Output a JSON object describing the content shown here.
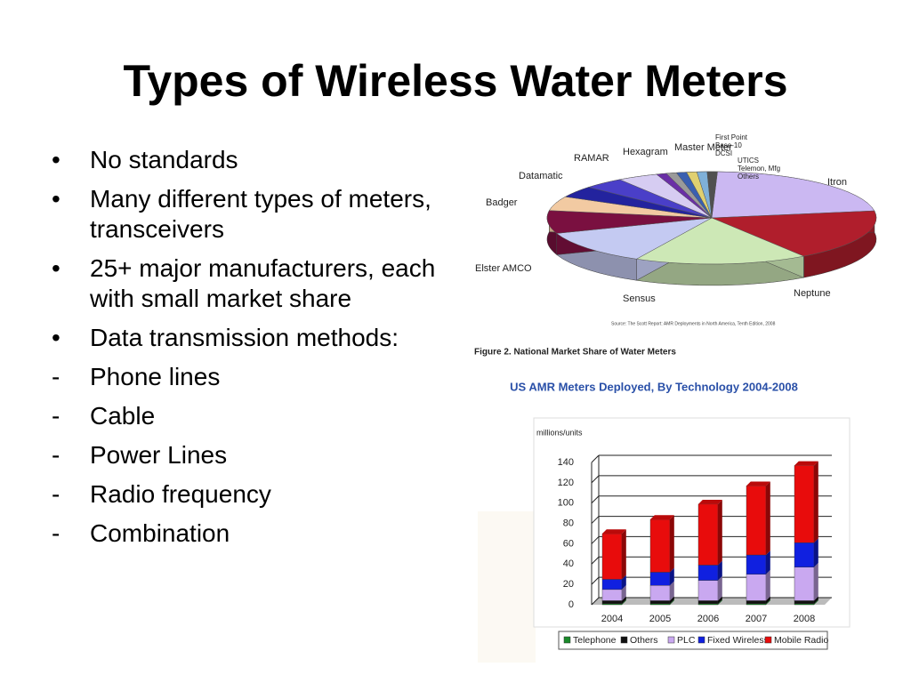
{
  "title": "Types of Wireless Water Meters",
  "bullets": [
    {
      "marker": "•",
      "text": "No standards"
    },
    {
      "marker": "•",
      "text": "Many different types of meters, transceivers"
    },
    {
      "marker": "•",
      "text": "25+ major manufacturers, each with small market share"
    },
    {
      "marker": "•",
      "text": "Data transmission methods:"
    },
    {
      "marker": "-",
      "text": "Phone lines"
    },
    {
      "marker": "-",
      "text": "Cable"
    },
    {
      "marker": "-",
      "text": "Power Lines"
    },
    {
      "marker": "-",
      "text": "Radio frequency"
    },
    {
      "marker": "-",
      "text": "Combination"
    }
  ],
  "chart_data": [
    {
      "type": "pie",
      "caption": "Figure 2.  National Market Share of Water Meters",
      "source": "Source: The Scott Report: AMR Deployments in North America, Tenth Edition, 2008",
      "categories": [
        "Itron",
        "Neptune",
        "Sensus",
        "Elster AMCO",
        "Badger",
        "Datamatic",
        "RAMAR",
        "Hexagram",
        "Master Meter",
        "First Point",
        "Base-10",
        "DCSI",
        "UTICS",
        "Telemon, Mfg",
        "Others"
      ],
      "values": [
        22,
        18,
        17,
        12,
        8,
        5,
        4,
        4,
        4,
        1,
        1,
        1,
        1,
        1,
        1
      ],
      "colors": [
        "#cbb8f2",
        "#b01e2c",
        "#cde8b6",
        "#c4caf2",
        "#7a1040",
        "#f2caa2",
        "#23239e",
        "#4a3fc8",
        "#d6ccf2",
        "#6a2fa6",
        "#9a9a9a",
        "#3a5fb0",
        "#e0d070",
        "#7fb0d8",
        "#505050"
      ]
    },
    {
      "type": "bar",
      "stacked": true,
      "title": "US AMR Meters Deployed, By Technology 2004-2008",
      "y_label": "millions/units",
      "categories": [
        "2004",
        "2005",
        "2006",
        "2007",
        "2008"
      ],
      "series": [
        {
          "name": "Telephone",
          "color": "#1a8a2a",
          "values": [
            1,
            1,
            1,
            1,
            1
          ]
        },
        {
          "name": "Others",
          "color": "#111111",
          "values": [
            3,
            3,
            3,
            3,
            3
          ]
        },
        {
          "name": "PLC",
          "color": "#c9a8f0",
          "values": [
            11,
            15,
            20,
            26,
            33
          ]
        },
        {
          "name": "Fixed Wireless",
          "color": "#1020e0",
          "values": [
            10,
            13,
            15,
            19,
            24
          ]
        },
        {
          "name": "Mobile Radio",
          "color": "#e80c0c",
          "values": [
            45,
            52,
            60,
            68,
            76
          ]
        }
      ],
      "ylim": [
        0,
        140
      ],
      "yticks": [
        0,
        20,
        40,
        60,
        80,
        100,
        120,
        140
      ],
      "grid": true
    }
  ]
}
